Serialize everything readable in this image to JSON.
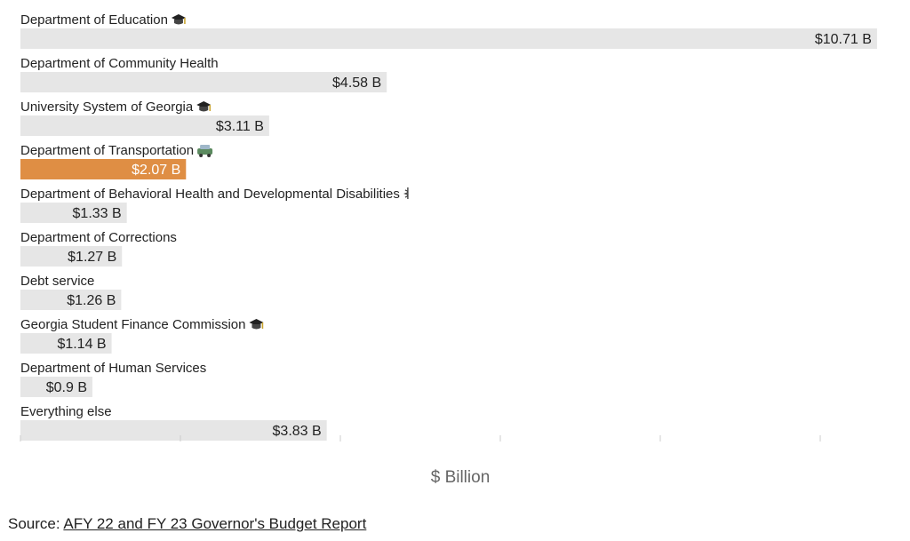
{
  "chart_data": {
    "type": "bar",
    "orientation": "horizontal",
    "categories": [
      "Department of Education",
      "Department of Community Health",
      "University System of Georgia",
      "Department of Transportation",
      "Department of Behavioral Health and Developmental Disabilities",
      "Department of Corrections",
      "Debt service",
      "Georgia Student Finance Commission",
      "Department of Human Services",
      "Everything else"
    ],
    "values": [
      10.71,
      4.58,
      3.11,
      2.07,
      1.33,
      1.27,
      1.26,
      1.14,
      0.9,
      3.83
    ],
    "value_labels": [
      "$10.71 B",
      "$4.58 B",
      "$3.11 B",
      "$2.07 B",
      "$1.33 B",
      "$1.27 B",
      "$1.26 B",
      "$1.14 B",
      "$0.9 B",
      "$3.83 B"
    ],
    "icons": [
      "graduation-cap",
      "",
      "graduation-cap",
      "car",
      "medical",
      "",
      "",
      "graduation-cap",
      "",
      ""
    ],
    "highlight_index": 3,
    "xlabel": "$ Billion",
    "xlim": [
      0,
      11
    ],
    "colors": {
      "bar": "#e6e6e6",
      "highlight": "#df8e44",
      "highlight_text": "#ffffff",
      "text": "#222222"
    }
  },
  "source": {
    "prefix": "Source: ",
    "link_text": "AFY 22 and FY 23 Governor's Budget Report"
  }
}
